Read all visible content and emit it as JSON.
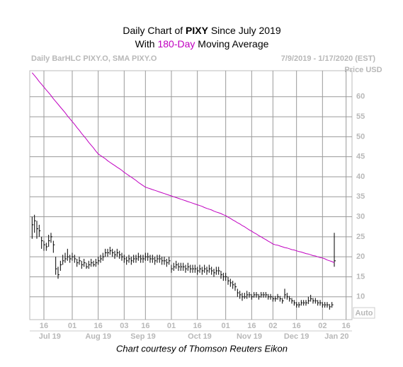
{
  "chart_data": {
    "type": "hlc",
    "title_parts": [
      "Daily Chart of ",
      "PIXY",
      " Since July 2019"
    ],
    "subtitle_parts": [
      "With ",
      "180-Day",
      " Moving Average"
    ],
    "header_left": "Daily BarHLC PIXY.O, SMA PIXY.O",
    "header_right": "7/9/2019 - 1/17/2020 (EST)",
    "y_axis_label": "Price USD",
    "scale_label": "Auto",
    "footer": "Chart courtesy of Thomson Reuters Eikon",
    "bar_color": "#000000",
    "sma_color": "#c000c0",
    "highlight_color": "#c000c0",
    "grid": true,
    "ylim": [
      4.3,
      66.5
    ],
    "yticks": [
      10,
      15,
      20,
      25,
      30,
      35,
      40,
      45,
      50,
      55,
      60
    ],
    "xlim": [
      -1,
      135.5
    ],
    "xticks": [
      {
        "value": 5,
        "label": "16"
      },
      {
        "value": 17,
        "label": "01"
      },
      {
        "value": 28,
        "label": "16"
      },
      {
        "value": 39,
        "label": "03"
      },
      {
        "value": 48,
        "label": "16"
      },
      {
        "value": 59,
        "label": "01"
      },
      {
        "value": 70,
        "label": "16"
      },
      {
        "value": 82,
        "label": "01"
      },
      {
        "value": 93,
        "label": "16"
      },
      {
        "value": 102,
        "label": "02"
      },
      {
        "value": 112,
        "label": "16"
      },
      {
        "value": 123,
        "label": "02"
      },
      {
        "value": 133,
        "label": "16"
      }
    ],
    "month_ticks": [
      {
        "value": 7.5,
        "label": "Jul 19"
      },
      {
        "value": 28,
        "label": "Aug 19"
      },
      {
        "value": 47,
        "label": "Sep 19"
      },
      {
        "value": 71,
        "label": "Oct 19"
      },
      {
        "value": 92,
        "label": "Nov 19"
      },
      {
        "value": 112,
        "label": "Dec 19"
      },
      {
        "value": 129,
        "label": "Jan 20"
      }
    ],
    "high": [
      30,
      30.5,
      29,
      28,
      25,
      24,
      23.5,
      25.5,
      26,
      24,
      20,
      17.5,
      19,
      20.5,
      21,
      22,
      20.5,
      21,
      20.5,
      19.5,
      20,
      19,
      19.5,
      18.5,
      19,
      19.5,
      19,
      19.5,
      20,
      20.5,
      21,
      22,
      22,
      22.5,
      22,
      21.5,
      22,
      21.5,
      21,
      20.5,
      20,
      20.5,
      20,
      20.5,
      20.5,
      21,
      20.5,
      20.5,
      21,
      21,
      20.5,
      20.5,
      20,
      20.5,
      20.5,
      20,
      20,
      19.5,
      20,
      18,
      18.5,
      19,
      18.5,
      18.5,
      18.5,
      18,
      18.5,
      18,
      18,
      18,
      17.5,
      18,
      17.5,
      18,
      17.5,
      18,
      17.5,
      17,
      17.5,
      17.5,
      16.5,
      16,
      16,
      15,
      14.5,
      14,
      13.5,
      12,
      11.5,
      11,
      11,
      11.5,
      11.2,
      10.7,
      11.2,
      11.2,
      10.7,
      11.2,
      11.2,
      11.2,
      10.7,
      10.7,
      10.2,
      10.2,
      10.7,
      10.2,
      9.7,
      12,
      11,
      10.2,
      9.7,
      9.2,
      8.7,
      8.7,
      9.2,
      9.2,
      9.2,
      10,
      10.5,
      9.7,
      9.7,
      9.2,
      9.2,
      8.7,
      8.7,
      8.7,
      8.2,
      8.7,
      26
    ],
    "low": [
      24.5,
      26,
      24.5,
      25,
      22,
      21.5,
      21.5,
      22.5,
      23.5,
      21,
      15.5,
      14.5,
      16.5,
      18,
      18.5,
      19,
      18.5,
      19,
      18.5,
      17.5,
      18,
      17,
      17.5,
      17,
      17,
      17.5,
      17.5,
      17.5,
      18,
      18.5,
      19,
      20,
      20,
      20.5,
      20,
      19.5,
      20,
      19.5,
      19,
      18.5,
      18,
      18.5,
      18,
      18.5,
      18.5,
      19,
      18.5,
      18.5,
      19,
      19,
      18.5,
      18.5,
      18,
      18.5,
      18.5,
      18,
      18,
      17.5,
      18,
      16,
      16.5,
      17,
      16.5,
      16.5,
      16.5,
      16,
      16.5,
      16,
      16,
      16,
      15.5,
      16,
      15.5,
      16,
      15.5,
      16,
      15.5,
      15,
      15.5,
      15.5,
      14.5,
      14,
      14,
      13,
      12.5,
      12,
      11.5,
      10,
      9.5,
      9,
      9.5,
      9.5,
      9.8,
      9.3,
      9.8,
      9.8,
      9.3,
      9.8,
      9.8,
      9.8,
      9.3,
      9.3,
      8.8,
      8.8,
      9.3,
      8.8,
      8.3,
      9.5,
      9.3,
      8.8,
      8.3,
      7.8,
      7.3,
      7.3,
      7.8,
      7.8,
      7.8,
      8.2,
      8.8,
      8.3,
      8.3,
      7.8,
      7.8,
      7.3,
      7.3,
      7.3,
      6.8,
      7.3,
      17.5
    ],
    "close": [
      28,
      29,
      27,
      26.5,
      24,
      23,
      22.5,
      24,
      25,
      23,
      17,
      15.5,
      18,
      19,
      19.5,
      20,
      19.5,
      20,
      19.5,
      18.5,
      19,
      18,
      18.5,
      17.5,
      18,
      18.5,
      18,
      18.5,
      19,
      19.5,
      20,
      21,
      21,
      21.5,
      21,
      20.5,
      21,
      20.5,
      20,
      19.5,
      19,
      19.5,
      19,
      19.5,
      19.5,
      20,
      19.5,
      19.5,
      20,
      20,
      19.5,
      19.5,
      19,
      19.5,
      19.5,
      19,
      19,
      18.5,
      19,
      17,
      17.5,
      18,
      17.5,
      17.5,
      17.5,
      17,
      17.5,
      17,
      17,
      17,
      16.5,
      17,
      16.5,
      17,
      16.5,
      17,
      16.5,
      16,
      16.5,
      16.5,
      15.5,
      15,
      15,
      14,
      13.5,
      13,
      12.5,
      11,
      10.5,
      10,
      10,
      10.5,
      10.5,
      10,
      10.5,
      10.5,
      10,
      10.5,
      10.5,
      10.5,
      10,
      10,
      9.5,
      9.5,
      10,
      9.5,
      9,
      10.5,
      10,
      9.5,
      9,
      8.5,
      8,
      8,
      8.5,
      8.5,
      8.5,
      9,
      9.5,
      9,
      9,
      8.5,
      8.5,
      8,
      8,
      8,
      7.5,
      8,
      19
    ],
    "sma": [
      66,
      65.3,
      64.6,
      63.8,
      63.1,
      62.4,
      61.7,
      61,
      60.3,
      59.5,
      58.8,
      58.1,
      57.4,
      56.7,
      56,
      55.2,
      54.5,
      53.8,
      53.1,
      52.3,
      51.6,
      50.8,
      50.1,
      49.4,
      48.6,
      47.9,
      47.2,
      46.4,
      45.7,
      45.3,
      44.9,
      44.5,
      44.0,
      43.6,
      43.2,
      42.8,
      42.4,
      42.0,
      41.6,
      41.1,
      40.7,
      40.3,
      39.9,
      39.5,
      39.1,
      38.6,
      38.2,
      37.8,
      37.4,
      37.2,
      37.0,
      36.8,
      36.6,
      36.4,
      36.2,
      36.0,
      35.8,
      35.6,
      35.4,
      35.2,
      35.0,
      34.8,
      34.6,
      34.4,
      34.2,
      34.0,
      33.8,
      33.6,
      33.4,
      33.2,
      33.0,
      32.8,
      32.6,
      32.3,
      32.1,
      31.9,
      31.7,
      31.4,
      31.2,
      31.0,
      30.8,
      30.5,
      30.3,
      29.9,
      29.6,
      29.2,
      28.9,
      28.5,
      28.2,
      27.8,
      27.5,
      27.1,
      26.7,
      26.4,
      26.0,
      25.7,
      25.3,
      25.0,
      24.6,
      24.3,
      23.9,
      23.6,
      23.2,
      23.0,
      22.9,
      22.7,
      22.5,
      22.3,
      22.2,
      22.0,
      21.8,
      21.7,
      21.5,
      21.3,
      21.2,
      21.0,
      20.8,
      20.7,
      20.5,
      20.3,
      20.2,
      20.0,
      19.8,
      19.7,
      19.5,
      19.2,
      19.0,
      18.8,
      18.5
    ]
  }
}
